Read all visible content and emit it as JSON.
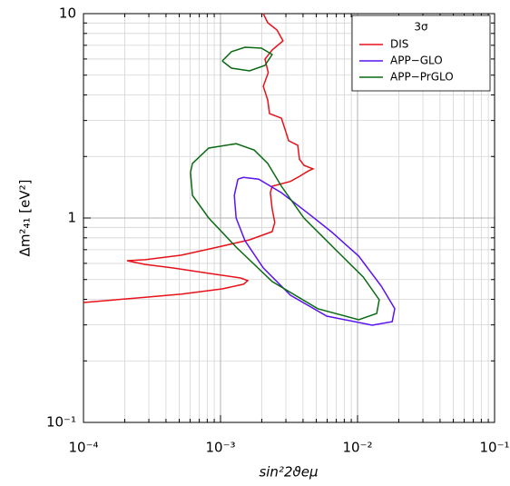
{
  "chart_data": {
    "type": "line",
    "xlabel": "sin²2ϑeμ",
    "ylabel": "Δm²₄₁  [eV²]",
    "legend_title": "3σ",
    "legend_position": "upper right",
    "xscale": "log",
    "yscale": "log",
    "grid": true,
    "xlim": [
      0.0001,
      0.1
    ],
    "ylim": [
      0.1,
      10
    ],
    "xticks": [
      {
        "value": 0.0001,
        "label": "10⁻⁴"
      },
      {
        "value": 0.001,
        "label": "10⁻³"
      },
      {
        "value": 0.01,
        "label": "10⁻²"
      },
      {
        "value": 0.1,
        "label": "10⁻¹"
      }
    ],
    "yticks": [
      {
        "value": 0.1,
        "label": "10⁻¹"
      },
      1,
      10
    ],
    "series": [
      {
        "name": "DIS",
        "color": "#e8121a",
        "x": [
          0.0001,
          0.000242,
          0.000519,
          0.00103,
          0.00147,
          0.00158,
          0.0014,
          0.00082,
          0.000446,
          0.000282,
          0.000208,
          0.000282,
          0.000519,
          0.000955,
          0.00163,
          0.00238,
          0.00249,
          0.00238,
          0.00231,
          0.00238,
          0.00324,
          0.00377,
          0.00439,
          0.00473,
          0.00406,
          0.00377,
          0.00366,
          0.00314,
          0.003,
          0.00278,
          0.00228,
          0.00221,
          0.00205,
          0.00223,
          0.00211,
          0.00238,
          0.00286,
          0.00258,
          0.00221,
          0.00205
        ],
        "y": [
          0.386,
          0.406,
          0.424,
          0.45,
          0.474,
          0.494,
          0.509,
          0.536,
          0.57,
          0.593,
          0.618,
          0.625,
          0.658,
          0.721,
          0.782,
          0.858,
          0.95,
          1.11,
          1.33,
          1.43,
          1.51,
          1.6,
          1.7,
          1.74,
          1.81,
          1.94,
          2.27,
          2.39,
          2.64,
          3.08,
          3.24,
          3.78,
          4.41,
          5.14,
          5.99,
          6.64,
          7.36,
          8.32,
          9.03,
          10
        ]
      },
      {
        "name": "APP−GLO",
        "color": "#5a12f0",
        "x": [
          0.00134,
          0.00126,
          0.0013,
          0.00151,
          0.00205,
          0.00324,
          0.00596,
          0.0128,
          0.0179,
          0.0187,
          0.0149,
          0.0102,
          0.00643,
          0.00439,
          0.00278,
          0.0019,
          0.00147,
          0.00134
        ],
        "y": [
          1.55,
          1.29,
          1,
          0.774,
          0.57,
          0.419,
          0.331,
          0.299,
          0.311,
          0.36,
          0.464,
          0.651,
          0.858,
          1.05,
          1.33,
          1.55,
          1.58,
          1.55
        ]
      },
      {
        "name": "APP−PrGLO",
        "color": "#0a6a12",
        "x": [
          0.000604,
          0.000624,
          0.00082,
          0.0013,
          0.00238,
          0.00512,
          0.0102,
          0.0138,
          0.0144,
          0.011,
          0.00693,
          0.00406,
          0.00278,
          0.00221,
          0.00176,
          0.0013,
          0.00082,
          0.000624,
          0.000604,
          null,
          0.00103,
          0.0012,
          0.00151,
          0.00199,
          0.00238,
          0.00211,
          0.00163,
          0.0012,
          0.00103
        ],
        "y": [
          1.67,
          1.29,
          1,
          0.721,
          0.489,
          0.36,
          0.318,
          0.341,
          0.398,
          0.514,
          0.699,
          1,
          1.43,
          1.85,
          2.15,
          2.31,
          2.2,
          1.85,
          1.67,
          null,
          5.87,
          6.51,
          6.85,
          6.78,
          6.31,
          5.58,
          5.25,
          5.41,
          5.87
        ]
      }
    ]
  }
}
